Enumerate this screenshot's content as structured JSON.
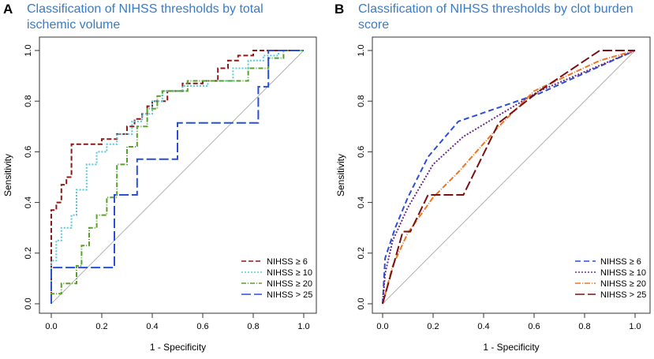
{
  "chart_data": [
    {
      "panel": "A",
      "type": "line",
      "title": "Classification of NIHSS thresholds by total ischemic volume",
      "xlabel": "1 - Specificity",
      "ylabel": "Sensitivity",
      "xlim": [
        0,
        1
      ],
      "ylim": [
        0,
        1
      ],
      "xticks": [
        "0.0",
        "0.2",
        "0.4",
        "0.6",
        "0.8",
        "1.0"
      ],
      "yticks": [
        "0.0",
        "0.2",
        "0.4",
        "0.6",
        "0.8",
        "1.0"
      ],
      "legend_position": "bottom-right",
      "series": [
        {
          "name": "NIHSS ≥ 6",
          "color": "#8b1a1a",
          "dash": "6,3",
          "x": [
            0,
            0,
            0.02,
            0.02,
            0.04,
            0.04,
            0.06,
            0.06,
            0.08,
            0.08,
            0.2,
            0.2,
            0.26,
            0.26,
            0.3,
            0.3,
            0.33,
            0.33,
            0.36,
            0.36,
            0.38,
            0.38,
            0.4,
            0.4,
            0.46,
            0.46,
            0.52,
            0.52,
            0.6,
            0.6,
            0.66,
            0.66,
            0.7,
            0.7,
            0.74,
            0.74,
            0.8,
            0.8,
            0.86,
            0.86,
            1.0
          ],
          "y": [
            0,
            0.37,
            0.37,
            0.4,
            0.4,
            0.47,
            0.47,
            0.5,
            0.5,
            0.63,
            0.63,
            0.65,
            0.65,
            0.67,
            0.67,
            0.7,
            0.7,
            0.73,
            0.73,
            0.75,
            0.75,
            0.78,
            0.78,
            0.8,
            0.8,
            0.84,
            0.84,
            0.87,
            0.87,
            0.88,
            0.88,
            0.93,
            0.93,
            0.96,
            0.96,
            0.98,
            0.98,
            1.0,
            1.0,
            1.0,
            1.0
          ]
        },
        {
          "name": "NIHSS ≥ 10",
          "color": "#5bc8d8",
          "dash": "2,2",
          "x": [
            0,
            0,
            0.02,
            0.02,
            0.04,
            0.04,
            0.08,
            0.08,
            0.1,
            0.1,
            0.14,
            0.14,
            0.18,
            0.18,
            0.22,
            0.22,
            0.26,
            0.26,
            0.32,
            0.32,
            0.36,
            0.36,
            0.4,
            0.4,
            0.44,
            0.44,
            0.52,
            0.52,
            0.62,
            0.62,
            0.72,
            0.72,
            0.78,
            0.78,
            0.84,
            0.84,
            0.9,
            0.9,
            1.0
          ],
          "y": [
            0,
            0.17,
            0.17,
            0.25,
            0.25,
            0.3,
            0.3,
            0.35,
            0.35,
            0.45,
            0.45,
            0.55,
            0.55,
            0.6,
            0.6,
            0.63,
            0.63,
            0.67,
            0.67,
            0.72,
            0.72,
            0.75,
            0.75,
            0.8,
            0.8,
            0.84,
            0.84,
            0.86,
            0.86,
            0.88,
            0.88,
            0.93,
            0.93,
            0.96,
            0.96,
            0.98,
            0.98,
            1.0,
            1.0
          ]
        },
        {
          "name": "NIHSS ≥ 20",
          "color": "#5aa02c",
          "dash": "6,2,1,2",
          "x": [
            0,
            0,
            0.04,
            0.04,
            0.1,
            0.1,
            0.12,
            0.12,
            0.15,
            0.15,
            0.18,
            0.18,
            0.22,
            0.22,
            0.26,
            0.26,
            0.3,
            0.3,
            0.34,
            0.34,
            0.38,
            0.38,
            0.42,
            0.42,
            0.44,
            0.44,
            0.54,
            0.54,
            0.62,
            0.62,
            0.78,
            0.78,
            0.86,
            0.86,
            0.92,
            0.92,
            1.0
          ],
          "y": [
            0,
            0.04,
            0.04,
            0.08,
            0.08,
            0.15,
            0.15,
            0.23,
            0.23,
            0.3,
            0.3,
            0.35,
            0.35,
            0.42,
            0.42,
            0.55,
            0.55,
            0.62,
            0.62,
            0.7,
            0.7,
            0.77,
            0.77,
            0.82,
            0.82,
            0.84,
            0.84,
            0.88,
            0.88,
            0.88,
            0.88,
            0.93,
            0.93,
            0.97,
            0.97,
            1.0,
            1.0
          ]
        },
        {
          "name": "NIHSS > 25",
          "color": "#2a4fd6",
          "dash": "12,4",
          "x": [
            0,
            0,
            0.25,
            0.25,
            0.34,
            0.34,
            0.5,
            0.5,
            0.82,
            0.82,
            0.86,
            0.86,
            1.0
          ],
          "y": [
            0,
            0.143,
            0.143,
            0.43,
            0.43,
            0.571,
            0.571,
            0.714,
            0.714,
            0.857,
            0.857,
            1.0,
            1.0
          ]
        }
      ]
    },
    {
      "panel": "B",
      "type": "line",
      "title": "Classification of NIHSS thresholds by clot burden score",
      "xlabel": "1 - Specificity",
      "ylabel": "Sensitivity",
      "xlim": [
        0,
        1
      ],
      "ylim": [
        0,
        1
      ],
      "xticks": [
        "0.0",
        "0.2",
        "0.4",
        "0.6",
        "0.8",
        "1.0"
      ],
      "yticks": [
        "0.0",
        "0.2",
        "0.4",
        "0.6",
        "0.8",
        "1.0"
      ],
      "legend_position": "bottom-right",
      "series": [
        {
          "name": "NIHSS ≥ 6",
          "color": "#2a4fd6",
          "dash": "7,4",
          "x": [
            0,
            0.01,
            0.05,
            0.1,
            0.18,
            0.3,
            0.62,
            1.0
          ],
          "y": [
            0,
            0.18,
            0.3,
            0.42,
            0.58,
            0.72,
            0.83,
            1.0
          ]
        },
        {
          "name": "NIHSS ≥ 10",
          "color": "#6a2a8a",
          "dash": "2,2",
          "x": [
            0,
            0.01,
            0.04,
            0.1,
            0.2,
            0.32,
            0.62,
            1.0
          ],
          "y": [
            0,
            0.12,
            0.25,
            0.38,
            0.55,
            0.66,
            0.84,
            1.0
          ]
        },
        {
          "name": "NIHSS ≥ 20",
          "color": "#ee7722",
          "dash": "7,2,1,2",
          "x": [
            0,
            0.04,
            0.1,
            0.2,
            0.3,
            0.46,
            0.6,
            0.86,
            1.0
          ],
          "y": [
            0,
            0.15,
            0.28,
            0.42,
            0.52,
            0.7,
            0.84,
            0.96,
            1.0
          ]
        },
        {
          "name": "NIHSS > 25",
          "color": "#7a1010",
          "dash": "12,4",
          "x": [
            0,
            0.08,
            0.11,
            0.11,
            0.18,
            0.32,
            0.46,
            0.62,
            0.86,
            1.0
          ],
          "y": [
            0,
            0.285,
            0.285,
            0.285,
            0.43,
            0.43,
            0.714,
            0.84,
            1.0,
            1.0
          ]
        }
      ]
    }
  ]
}
